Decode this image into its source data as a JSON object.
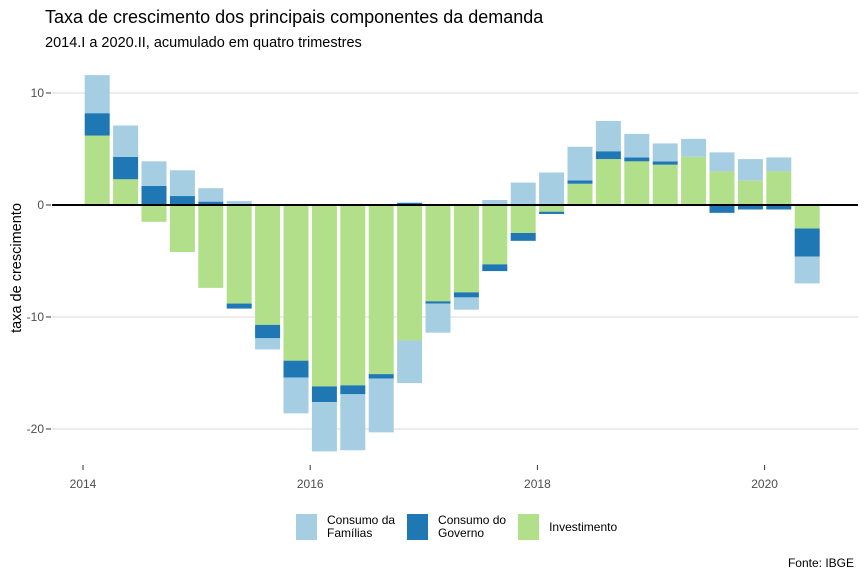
{
  "chart_data": {
    "type": "bar",
    "stacked": true,
    "title": "Taxa de crescimento dos principais componentes da demanda",
    "subtitle": "2014.I a 2020.II, acumulado em quatro trimestres",
    "xlabel": "",
    "ylabel": "taxa de crescimento",
    "caption": "Fonte: IBGE",
    "ylim": [
      -24,
      12.5
    ],
    "xlim": [
      2013.9,
      2020.85
    ],
    "yticks": [
      10,
      0,
      -10,
      -20
    ],
    "ytick_labels": [
      "10",
      "0",
      "-10",
      "-20"
    ],
    "xticks": [
      2014,
      2016,
      2018,
      2020
    ],
    "xtick_labels": [
      "2014",
      "2016",
      "2018",
      "2020"
    ],
    "grid": "horizontal",
    "zero_line": true,
    "legend_position": "bottom",
    "categories": [
      "2014.I",
      "2014.II",
      "2014.III",
      "2014.IV",
      "2015.I",
      "2015.II",
      "2015.III",
      "2015.IV",
      "2016.I",
      "2016.II",
      "2016.III",
      "2016.IV",
      "2017.I",
      "2017.II",
      "2017.III",
      "2017.IV",
      "2018.I",
      "2018.II",
      "2018.III",
      "2018.IV",
      "2019.I",
      "2019.II",
      "2019.III",
      "2019.IV",
      "2020.I",
      "2020.II"
    ],
    "x": [
      2014.125,
      2014.375,
      2014.625,
      2014.875,
      2015.125,
      2015.375,
      2015.625,
      2015.875,
      2016.125,
      2016.375,
      2016.625,
      2016.875,
      2017.125,
      2017.375,
      2017.625,
      2017.875,
      2018.125,
      2018.375,
      2018.625,
      2018.875,
      2019.125,
      2019.375,
      2019.625,
      2019.875,
      2020.125,
      2020.375
    ],
    "series": [
      {
        "name": "Investimento",
        "legend_label": "Investimento",
        "color": "#B2DF8A",
        "values": [
          6.2,
          2.3,
          -1.5,
          -4.2,
          -7.4,
          -8.8,
          -10.7,
          -13.9,
          -16.2,
          -16.1,
          -15.1,
          -12.1,
          -8.6,
          -7.8,
          -5.3,
          -2.5,
          -0.6,
          1.9,
          4.1,
          3.9,
          3.6,
          4.3,
          3.0,
          2.2,
          3.0,
          -2.1
        ]
      },
      {
        "name": "Consumo do Governo",
        "legend_label": "Consumo do\nGoverno",
        "color": "#1F78B4",
        "values": [
          2.0,
          2.0,
          1.7,
          0.8,
          0.3,
          -0.45,
          -1.2,
          -1.5,
          -1.4,
          -0.8,
          -0.4,
          0.2,
          -0.2,
          -0.45,
          -0.6,
          -0.7,
          -0.2,
          0.3,
          0.7,
          0.35,
          0.3,
          0.0,
          -0.7,
          -0.4,
          -0.4,
          -2.5
        ]
      },
      {
        "name": "Consumo da Famílias",
        "legend_label": "Consumo da\nFamílias",
        "color": "#A6CEE3",
        "values": [
          3.4,
          2.8,
          2.2,
          2.3,
          1.2,
          0.35,
          -1.0,
          -3.2,
          -4.4,
          -5.0,
          -4.8,
          -3.8,
          -2.6,
          -1.1,
          0.45,
          2.0,
          2.9,
          3.0,
          2.7,
          2.1,
          1.6,
          1.6,
          1.7,
          1.9,
          1.25,
          -2.4
        ]
      }
    ],
    "legend_order": [
      "Consumo da Famílias",
      "Consumo do Governo",
      "Investimento"
    ]
  },
  "colors": {
    "grid": "#d9d9d9",
    "zero_line": "#000000",
    "tick_text": "#4d4d4d"
  }
}
